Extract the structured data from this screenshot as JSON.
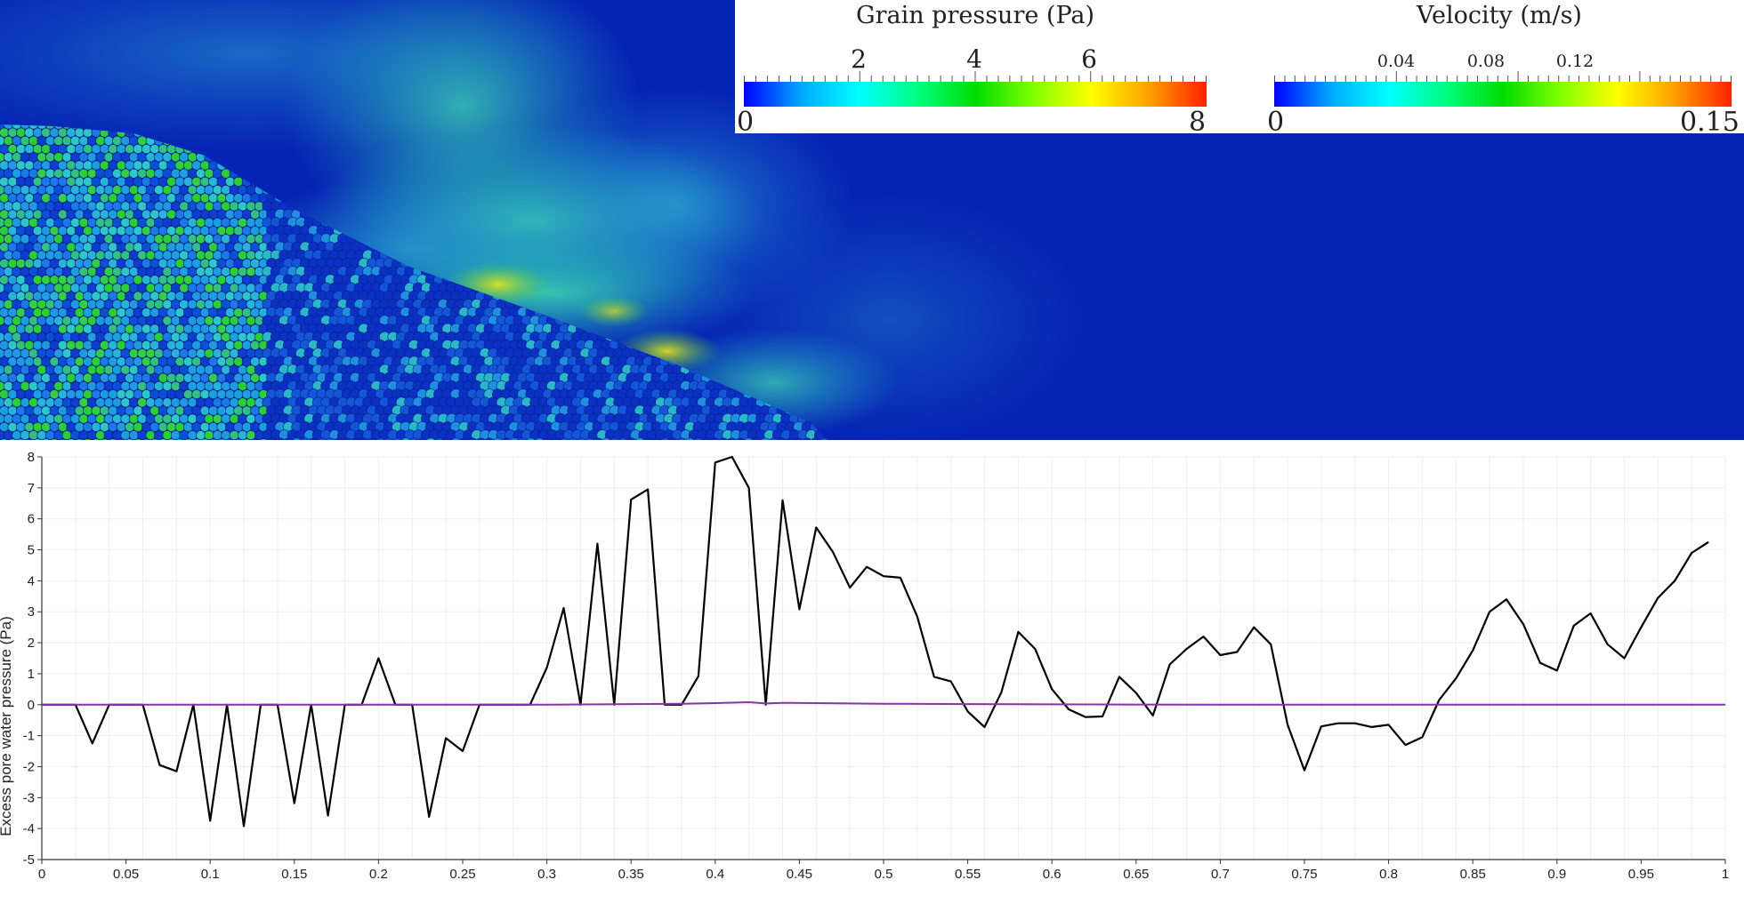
{
  "legends": {
    "grain_pressure": {
      "title": "Grain pressure (Pa)",
      "min_label": "0",
      "max_label": "8",
      "min": 0,
      "max": 8,
      "tick_labels": [
        "2",
        "4",
        "6"
      ],
      "tick_values": [
        2,
        4,
        6
      ],
      "colormap": [
        "#0000ff",
        "#00aaff",
        "#00ffff",
        "#00ff80",
        "#00dd00",
        "#80ff00",
        "#ffff00",
        "#ffa000",
        "#ff2000"
      ]
    },
    "velocity": {
      "title": "Velocity (m/s)",
      "min_label": "0",
      "max_label": "0.15",
      "min": 0,
      "max": 0.15,
      "tick_labels": [
        "0.04",
        "0.08",
        "0.12"
      ],
      "tick_values": [
        0.04,
        0.08,
        0.12
      ],
      "colormap": [
        "#0000ff",
        "#00aaff",
        "#00ffff",
        "#00ff80",
        "#00dd00",
        "#80ff00",
        "#ffff00",
        "#ffa000",
        "#ff2000"
      ]
    }
  },
  "chart_data": {
    "type": "line",
    "title": "",
    "xlabel": "",
    "ylabel": "Excess pore water pressure (Pa)",
    "xlim": [
      0,
      1
    ],
    "ylim": [
      -5,
      8
    ],
    "grid": true,
    "x_ticks": [
      0,
      0.05,
      0.1,
      0.15,
      0.2,
      0.25,
      0.3,
      0.35,
      0.4,
      0.45,
      0.5,
      0.55,
      0.6,
      0.65,
      0.7,
      0.75,
      0.8,
      0.85,
      0.9,
      0.95,
      1
    ],
    "x_tick_labels": [
      "0",
      "0.05",
      "0.1",
      "0.15",
      "0.2",
      "0.25",
      "0.3",
      "0.35",
      "0.4",
      "0.45",
      "0.5",
      "0.55",
      "0.6",
      "0.65",
      "0.7",
      "0.75",
      "0.8",
      "0.85",
      "0.9",
      "0.95",
      "1"
    ],
    "y_ticks": [
      -5,
      -4,
      -3,
      -2,
      -1,
      0,
      1,
      2,
      3,
      4,
      5,
      6,
      7,
      8
    ],
    "y_tick_labels": [
      "-5",
      "-4",
      "-3",
      "-2",
      "-1",
      "0",
      "1",
      "2",
      "3",
      "4",
      "5",
      "6",
      "7",
      "8"
    ],
    "series": [
      {
        "color": "#000000",
        "x": [
          0,
          0.01,
          0.02,
          0.03,
          0.04,
          0.05,
          0.06,
          0.07,
          0.08,
          0.09,
          0.1,
          0.11,
          0.12,
          0.13,
          0.14,
          0.15,
          0.16,
          0.17,
          0.18,
          0.19,
          0.2,
          0.21,
          0.22,
          0.23,
          0.24,
          0.25,
          0.26,
          0.27,
          0.28,
          0.29,
          0.3,
          0.31,
          0.32,
          0.33,
          0.34,
          0.35,
          0.36,
          0.37,
          0.38,
          0.39,
          0.4,
          0.41,
          0.42,
          0.43,
          0.44,
          0.45,
          0.46,
          0.47,
          0.48,
          0.49,
          0.5,
          0.51,
          0.52,
          0.53,
          0.54,
          0.55,
          0.56,
          0.57,
          0.58,
          0.59,
          0.6,
          0.61,
          0.62,
          0.63,
          0.64,
          0.65,
          0.66,
          0.67,
          0.68,
          0.69,
          0.7,
          0.71,
          0.72,
          0.73,
          0.74,
          0.75,
          0.76,
          0.77,
          0.78,
          0.79,
          0.8,
          0.81,
          0.82,
          0.83,
          0.84,
          0.85,
          0.86,
          0.87,
          0.88,
          0.89,
          0.9,
          0.91,
          0.92,
          0.93,
          0.94,
          0.95,
          0.96,
          0.97,
          0.98,
          0.99
        ],
        "y": [
          0,
          0,
          0,
          -1.25,
          0,
          0,
          0,
          -1.95,
          -2.15,
          0,
          -3.75,
          0,
          -3.92,
          0,
          0,
          -3.18,
          0,
          -3.58,
          0,
          0,
          1.5,
          0,
          0,
          -3.62,
          -1.08,
          -1.5,
          0,
          0,
          0,
          0,
          1.2,
          3.12,
          0,
          5.2,
          0,
          6.62,
          6.95,
          0,
          0,
          0.92,
          7.82,
          8.0,
          7.0,
          0,
          6.6,
          3.08,
          5.72,
          4.92,
          3.78,
          4.45,
          4.15,
          4.1,
          2.85,
          0.9,
          0.75,
          -0.22,
          -0.72,
          0.4,
          2.35,
          1.8,
          0.5,
          -0.15,
          -0.4,
          -0.38,
          0.9,
          0.38,
          -0.35,
          1.3,
          1.8,
          2.2,
          1.6,
          1.7,
          2.5,
          1.95,
          -0.65,
          -2.12,
          -0.7,
          -0.6,
          -0.6,
          -0.72,
          -0.65,
          -1.3,
          -1.05,
          0.15,
          0.85,
          1.75,
          3.0,
          3.4,
          2.6,
          1.35,
          1.1,
          2.55,
          2.95,
          1.95,
          1.5,
          2.5,
          3.45,
          4.0,
          4.9,
          5.25
        ]
      },
      {
        "color": "#8833aa",
        "x": [
          0,
          0.1,
          0.2,
          0.3,
          0.35,
          0.38,
          0.4,
          0.42,
          0.43,
          0.44,
          0.46,
          0.5,
          0.55,
          0.6,
          0.7,
          0.8,
          0.9,
          1.0
        ],
        "y": [
          0,
          0,
          0,
          0,
          0.02,
          0.03,
          0.05,
          0.08,
          0.04,
          0.06,
          0.05,
          0.03,
          0.02,
          0.01,
          0,
          0,
          0,
          0
        ]
      }
    ]
  }
}
